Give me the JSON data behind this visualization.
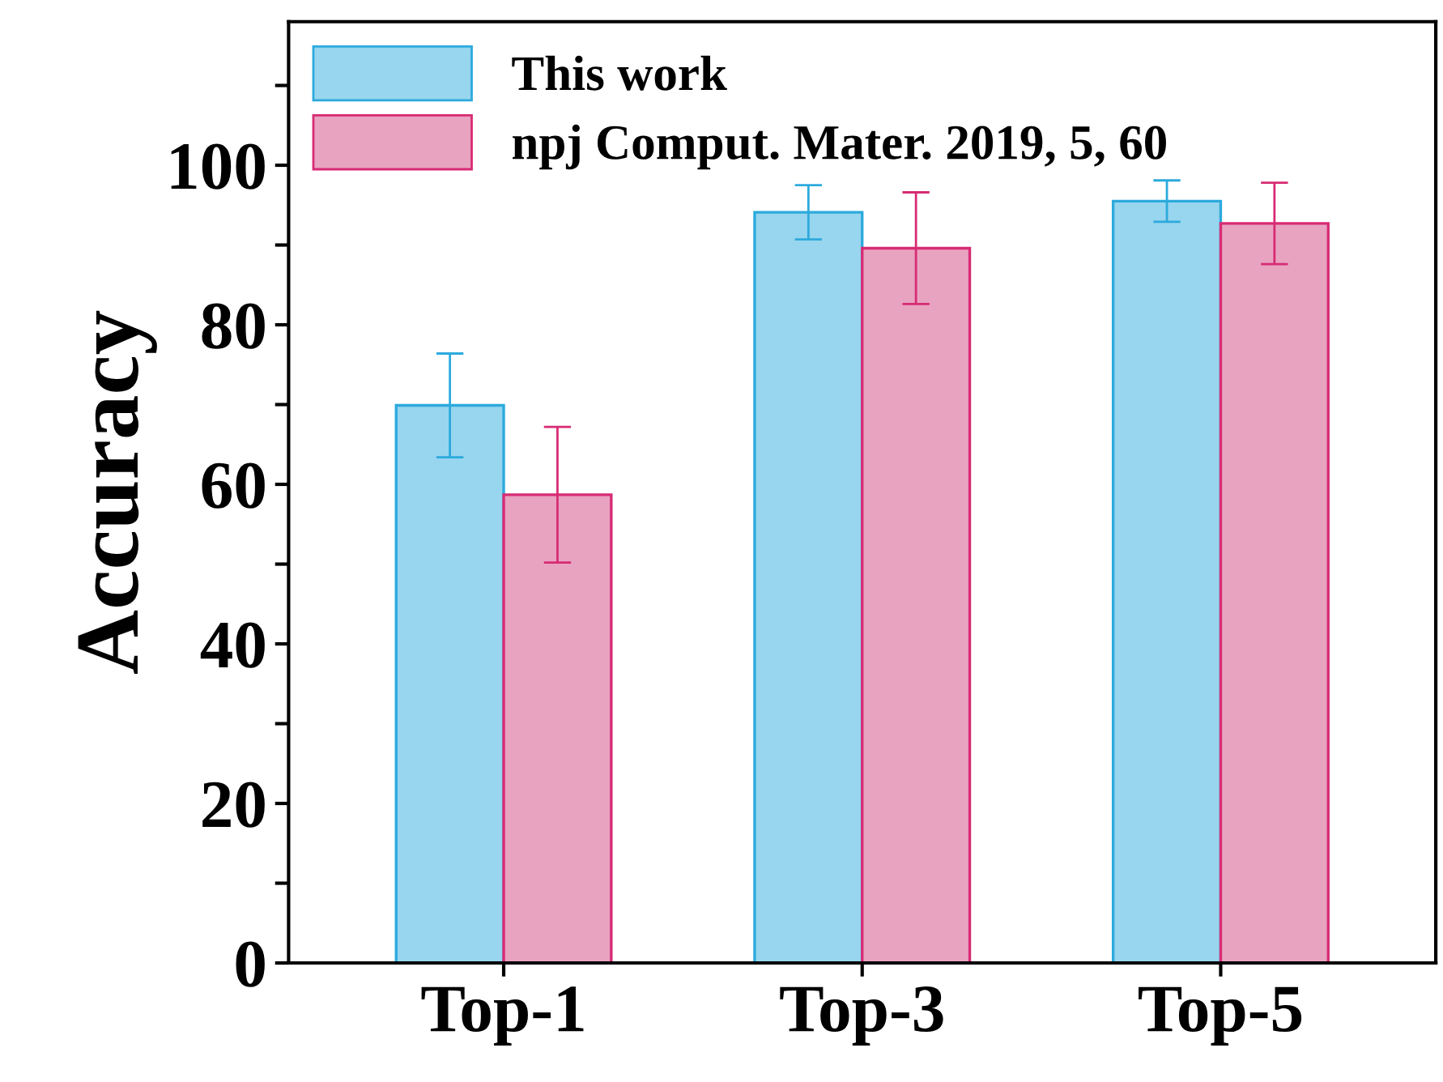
{
  "chart_data": {
    "type": "bar",
    "ylabel": "Accuracy",
    "categories": [
      "Top-1",
      "Top-3",
      "Top-5"
    ],
    "series": [
      {
        "name": "This work",
        "color": "#98d5ee",
        "values": [
          69.9,
          94.1,
          95.5
        ],
        "errors": [
          6.5,
          3.4,
          2.6
        ]
      },
      {
        "name": "npj Comput. Mater. 2019, 5, 60",
        "color": "#e8a3c0",
        "values": [
          58.7,
          89.6,
          92.7
        ],
        "errors": [
          8.5,
          7.0,
          5.1
        ]
      }
    ],
    "ylim": [
      0,
      118
    ],
    "yticks": [
      0,
      {
        "value": 10,
        "label": null
      },
      20,
      {
        "value": 30,
        "label": null
      },
      40,
      {
        "value": 50,
        "label": null
      },
      60,
      {
        "value": 70,
        "label": null
      },
      80,
      {
        "value": 90,
        "label": null
      },
      100,
      {
        "value": 110,
        "label": null
      }
    ],
    "legend": "top left",
    "grid": false
  }
}
